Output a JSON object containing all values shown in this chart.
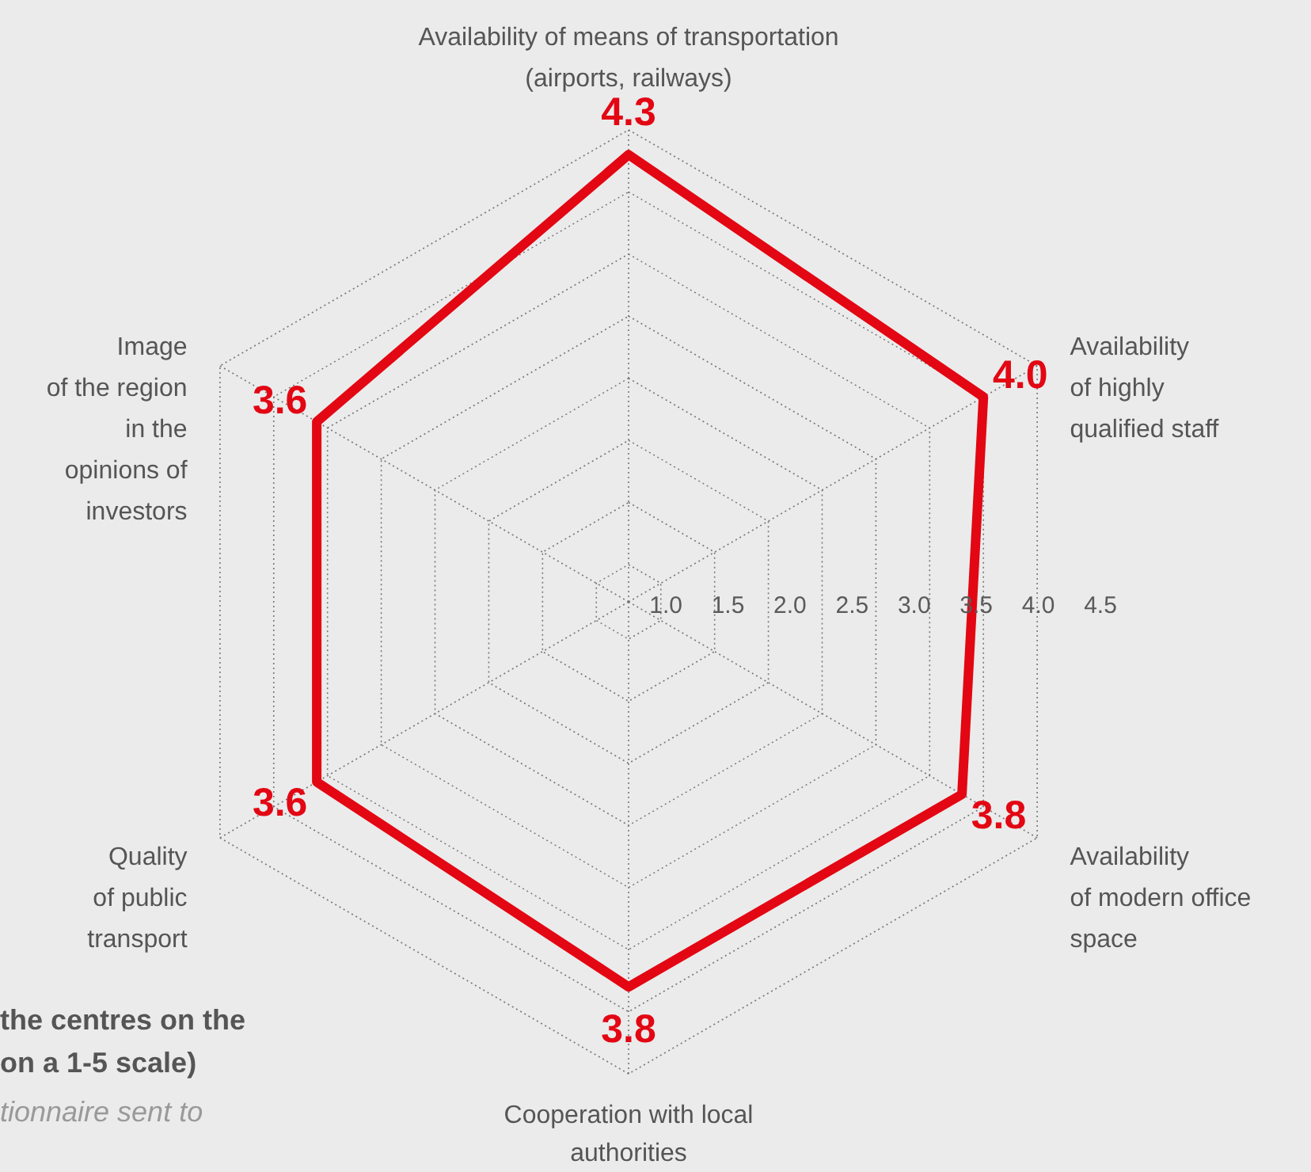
{
  "chart_data": {
    "type": "radar",
    "categories": [
      "Availability of means of transportation\n(airports, railways)",
      "Availability\nof highly\nqualified staff",
      "Availability\nof modern office\nspace",
      "Cooperation with local\nauthorities",
      "Quality\nof public\ntransport",
      "Image\nof the region\nin the\nopinions of\ninvestors"
    ],
    "series": [
      {
        "color": "#e30613",
        "values": [
          4.3,
          4.0,
          3.8,
          3.8,
          3.6,
          3.6
        ],
        "value_labels": [
          "4.3",
          "4.0",
          "3.8",
          "3.8",
          "3.6",
          "3.6"
        ]
      }
    ],
    "ylim": [
      0.7,
      4.5
    ],
    "yticks": [
      {
        "value": 1,
        "label": "1.0"
      },
      1.5,
      {
        "value": 2,
        "label": "2.0"
      },
      2.5,
      {
        "value": 3,
        "label": "3.0"
      },
      3.5,
      {
        "value": 4,
        "label": "4.0"
      },
      4.5
    ],
    "grid": true,
    "annotations": [
      "the centres on the",
      "on a 1-5 scale)",
      "tionnaire sent to"
    ]
  }
}
